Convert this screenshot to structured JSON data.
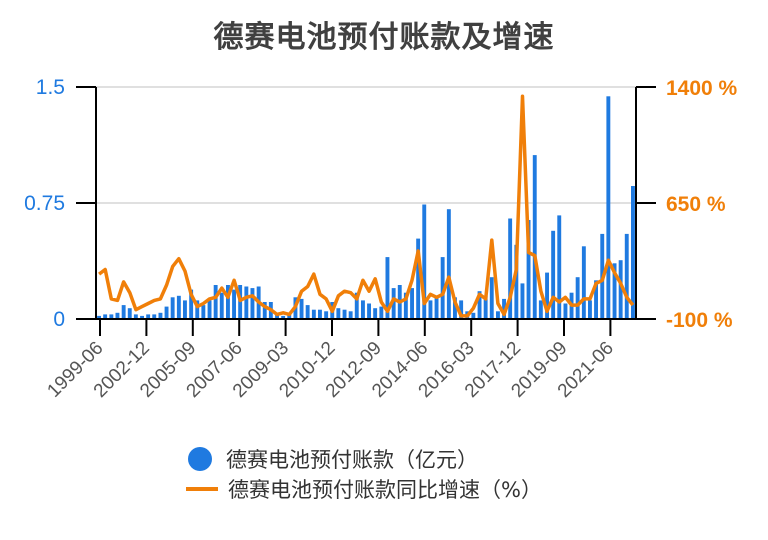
{
  "chart_data": {
    "type": "bar+line",
    "title": "德赛电池预付账款及增速",
    "xlabel": "",
    "ylabel_left": "",
    "ylabel_right": "",
    "y_left": {
      "ticks": [
        "0",
        "0.75",
        "1.5"
      ],
      "range": [
        0,
        1.5
      ],
      "color": "#1f7ae0"
    },
    "y_right": {
      "ticks": [
        "-100 %",
        "650 %",
        "1400 %"
      ],
      "range": [
        -100,
        1400
      ],
      "color": "#f07f09"
    },
    "x_tick_labels": [
      "1999-06",
      "2002-12",
      "2005-09",
      "2007-06",
      "2009-03",
      "2010-12",
      "2012-09",
      "2014-06",
      "2016-03",
      "2017-12",
      "2019-09",
      "2021-06"
    ],
    "grid": true,
    "legend_position": "bottom",
    "series": [
      {
        "name": "德赛电池预付账款（亿元）",
        "type": "bar",
        "axis": "left",
        "color": "#1f7ae0",
        "values": [
          0.02,
          0.03,
          0.03,
          0.04,
          0.09,
          0.07,
          0.03,
          0.02,
          0.03,
          0.03,
          0.04,
          0.08,
          0.14,
          0.15,
          0.12,
          0.19,
          0.12,
          0.09,
          0.12,
          0.22,
          0.17,
          0.22,
          0.19,
          0.22,
          0.21,
          0.2,
          0.21,
          0.11,
          0.11,
          0.03,
          0.02,
          0.03,
          0.14,
          0.13,
          0.09,
          0.06,
          0.06,
          0.05,
          0.11,
          0.07,
          0.06,
          0.05,
          0.17,
          0.12,
          0.1,
          0.07,
          0.08,
          0.4,
          0.2,
          0.22,
          0.17,
          0.2,
          0.52,
          0.74,
          0.12,
          0.14,
          0.4,
          0.71,
          0.14,
          0.12,
          0.05,
          0.04,
          0.18,
          0.15,
          0.27,
          0.05,
          0.13,
          0.65,
          0.48,
          0.23,
          0.64,
          1.06,
          0.12,
          0.3,
          0.57,
          0.67,
          0.1,
          0.17,
          0.27,
          0.47,
          0.12,
          0.25,
          0.55,
          1.44,
          0.36,
          0.38,
          0.55,
          0.86
        ],
        "note": "values estimated from pixel heights; ~88 periods between 1999-06 and 2022"
      },
      {
        "name": "德赛电池预付账款同比增速（%）",
        "type": "line",
        "axis": "right",
        "color": "#f07f09",
        "values": [
          190,
          220,
          30,
          20,
          140,
          70,
          -40,
          -20,
          0,
          20,
          30,
          120,
          240,
          290,
          210,
          60,
          -20,
          0,
          30,
          40,
          100,
          40,
          150,
          20,
          40,
          50,
          10,
          -20,
          -40,
          -70,
          -60,
          -70,
          -20,
          80,
          110,
          190,
          60,
          30,
          -50,
          50,
          80,
          70,
          30,
          150,
          80,
          160,
          10,
          -50,
          30,
          10,
          30,
          150,
          340,
          0,
          60,
          40,
          60,
          170,
          10,
          -80,
          -80,
          -30,
          60,
          30,
          410,
          0,
          -70,
          40,
          220,
          1340,
          330,
          310,
          80,
          -50,
          40,
          10,
          40,
          -10,
          -10,
          30,
          30,
          130,
          150,
          280,
          200,
          130,
          40,
          -10
        ]
      }
    ]
  },
  "legend": {
    "bar_label": "德赛电池预付账款（亿元）",
    "line_label": "德赛电池预付账款同比增速（%）"
  }
}
